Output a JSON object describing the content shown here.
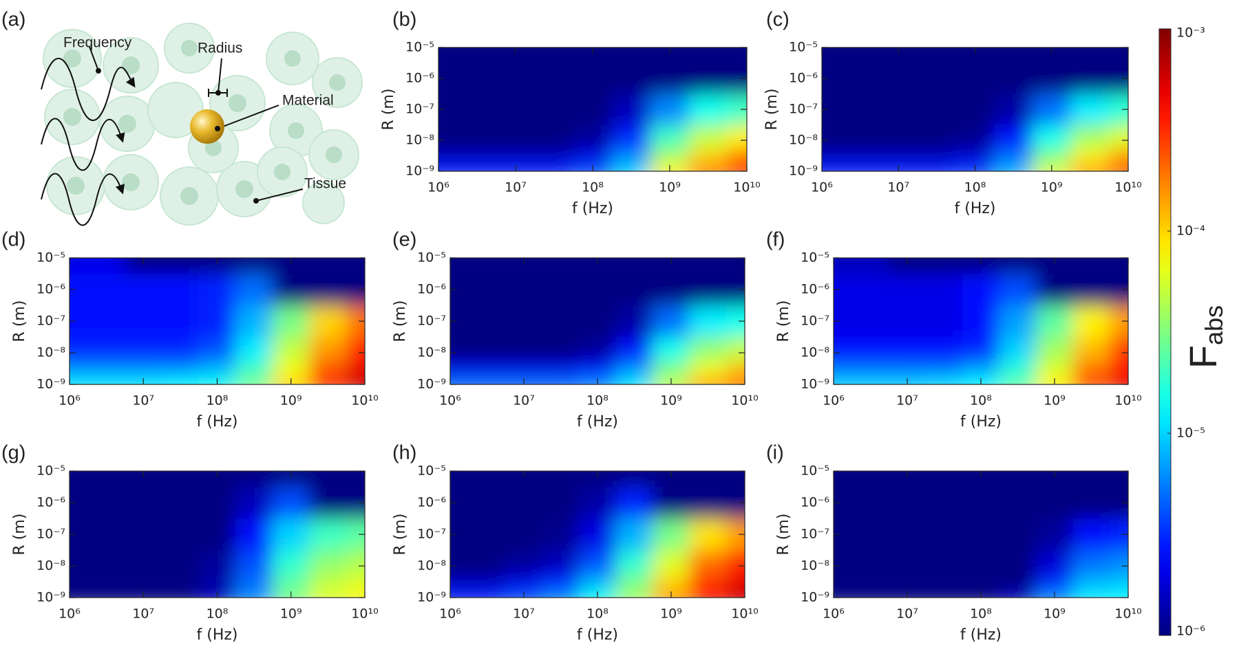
{
  "diagram": {
    "panel_label": "(a)",
    "labels": [
      "Frequency",
      "Radius",
      "Material",
      "Tissue"
    ]
  },
  "chart_data": {
    "type": "heatmap",
    "xlabel": "f (Hz)",
    "ylabel": "R (m)",
    "log_x": true,
    "log_y": true,
    "xlim": [
      1000000.0,
      10000000000.0
    ],
    "ylim": [
      1e-09,
      1e-05
    ],
    "xticks": [
      {
        "value": 1000000.0,
        "label": "10⁶"
      },
      {
        "value": 10000000.0,
        "label": "10⁷"
      },
      {
        "value": 100000000.0,
        "label": "10⁸"
      },
      {
        "value": 1000000000.0,
        "label": "10⁹"
      },
      {
        "value": 10000000000.0,
        "label": "10¹⁰"
      }
    ],
    "yticks": [
      {
        "value": 1e-09,
        "label": "10⁻⁹"
      },
      {
        "value": 1e-08,
        "label": "10⁻⁸"
      },
      {
        "value": 1e-07,
        "label": "10⁻⁷"
      },
      {
        "value": 1e-06,
        "label": "10⁻⁶"
      },
      {
        "value": 1e-05,
        "label": "10⁻⁵"
      }
    ],
    "x": [
      1000000.0,
      3160000.0,
      10000000.0,
      31600000.0,
      100000000.0,
      316000000.0,
      1000000000.0,
      3160000000.0,
      10000000000.0
    ],
    "y": [
      1e-09,
      3.16e-09,
      1e-08,
      1e-07,
      1e-06,
      1e-05
    ],
    "colormap": "jet",
    "colorbar": {
      "label": "F",
      "label_subscript": "abs",
      "lim": [
        1e-06,
        0.001
      ],
      "log": true,
      "ticks": [
        {
          "value": 1e-06,
          "label": "10⁻⁶"
        },
        {
          "value": 1e-05,
          "label": "10⁻⁵"
        },
        {
          "value": 0.0001,
          "label": "10⁻⁴"
        },
        {
          "value": 0.001,
          "label": "10⁻³"
        }
      ]
    },
    "panels": [
      {
        "label": "(b)",
        "z": [
          [
            3e-06,
            3e-06,
            3e-06,
            3e-06,
            4e-06,
            1e-05,
            8e-05,
            0.0002,
            0.0003
          ],
          [
            1.5e-06,
            1.5e-06,
            1.5e-06,
            1.5e-06,
            2e-06,
            6e-06,
            4e-05,
            0.0001,
            0.0002
          ],
          [
            1e-06,
            1e-06,
            1e-06,
            1e-06,
            1.2e-06,
            3e-06,
            2e-05,
            5e-05,
            8e-05
          ],
          [
            1e-06,
            1e-06,
            1e-06,
            1e-06,
            1e-06,
            1.5e-06,
            6e-06,
            1.5e-05,
            2e-05
          ],
          [
            1e-06,
            1e-06,
            1e-06,
            1e-06,
            1e-06,
            1e-06,
            1e-06,
            1e-06,
            1e-06
          ],
          [
            1e-06,
            1e-06,
            1e-06,
            1e-06,
            1e-06,
            1e-06,
            1e-06,
            1e-06,
            1e-06
          ]
        ]
      },
      {
        "label": "(c)",
        "z": [
          [
            3e-06,
            3e-06,
            3e-06,
            3e-06,
            3.5e-06,
            8e-06,
            6e-05,
            0.00015,
            0.00025
          ],
          [
            1.5e-06,
            1.5e-06,
            1.5e-06,
            1.5e-06,
            1.8e-06,
            5e-06,
            3e-05,
            8e-05,
            0.00015
          ],
          [
            1e-06,
            1e-06,
            1e-06,
            1e-06,
            1.1e-06,
            2.5e-06,
            1.5e-05,
            4e-05,
            6e-05
          ],
          [
            1e-06,
            1e-06,
            1e-06,
            1e-06,
            1e-06,
            1.3e-06,
            5e-06,
            1.2e-05,
            1.8e-05
          ],
          [
            1e-06,
            1e-06,
            1e-06,
            1e-06,
            1e-06,
            1e-06,
            1e-06,
            1e-06,
            1e-06
          ],
          [
            1e-06,
            1e-06,
            1e-06,
            1e-06,
            1e-06,
            1e-06,
            1e-06,
            1e-06,
            1e-06
          ]
        ]
      },
      {
        "label": "(d)",
        "z": [
          [
            1.2e-05,
            1.2e-05,
            1.2e-05,
            1.3e-05,
            1.5e-05,
            3e-05,
            0.0001,
            0.0003,
            0.0006
          ],
          [
            6e-06,
            6e-06,
            6e-06,
            6e-06,
            8e-06,
            2e-05,
            7e-05,
            0.00025,
            0.0005
          ],
          [
            3e-06,
            3e-06,
            3e-06,
            3e-06,
            4e-06,
            1.2e-05,
            5e-05,
            0.00015,
            0.00035
          ],
          [
            2.5e-06,
            2.5e-06,
            2.5e-06,
            2.5e-06,
            3e-06,
            8e-06,
            3e-05,
            0.0001,
            0.0002
          ],
          [
            2.5e-06,
            2.5e-06,
            2.5e-06,
            2.5e-06,
            3e-06,
            5e-06,
            1e-06,
            1e-06,
            1e-06
          ],
          [
            2e-06,
            2e-06,
            1e-06,
            1e-06,
            1e-06,
            1e-06,
            1e-06,
            1e-06,
            1e-06
          ]
        ]
      },
      {
        "label": "(e)",
        "z": [
          [
            5e-06,
            5e-06,
            5e-06,
            5e-06,
            6e-06,
            1.2e-05,
            5e-05,
            0.00015,
            0.0002
          ],
          [
            2e-06,
            2e-06,
            2e-06,
            2e-06,
            2.5e-06,
            6e-06,
            3e-05,
            7e-05,
            0.00012
          ],
          [
            1e-06,
            1e-06,
            1e-06,
            1e-06,
            1.2e-06,
            2.5e-06,
            1.5e-05,
            3.5e-05,
            5e-05
          ],
          [
            1e-06,
            1e-06,
            1e-06,
            1e-06,
            1e-06,
            1.3e-06,
            5e-06,
            1.2e-05,
            1.5e-05
          ],
          [
            1e-06,
            1e-06,
            1e-06,
            1e-06,
            1e-06,
            1e-06,
            1e-06,
            1e-06,
            1e-06
          ],
          [
            1e-06,
            1e-06,
            1e-06,
            1e-06,
            1e-06,
            1e-06,
            1e-06,
            1e-06,
            1e-06
          ]
        ]
      },
      {
        "label": "(f)",
        "z": [
          [
            1e-05,
            1e-05,
            1e-05,
            1.1e-05,
            1.3e-05,
            2.5e-05,
            8e-05,
            0.00025,
            0.0005
          ],
          [
            5e-06,
            5e-06,
            5e-06,
            5e-06,
            7e-06,
            1.7e-05,
            6e-05,
            0.0002,
            0.0004
          ],
          [
            2.5e-06,
            2.5e-06,
            2.5e-06,
            2.5e-06,
            3e-06,
            1e-05,
            4e-05,
            0.00012,
            0.0003
          ],
          [
            2e-06,
            2e-06,
            2e-06,
            2e-06,
            2.5e-06,
            7e-06,
            2.5e-05,
            8e-05,
            0.00015
          ],
          [
            2e-06,
            2e-06,
            2e-06,
            2e-06,
            2.5e-06,
            4e-06,
            1e-06,
            1e-06,
            1e-06
          ],
          [
            1.5e-06,
            1.5e-06,
            1e-06,
            1e-06,
            1e-06,
            1e-06,
            1e-06,
            1e-06,
            1e-06
          ]
        ]
      },
      {
        "label": "(g)",
        "z": [
          [
            1e-06,
            1e-06,
            1e-06,
            1e-06,
            1.5e-06,
            6e-06,
            3e-05,
            6e-05,
            8e-05
          ],
          [
            1e-06,
            1e-06,
            1e-06,
            1e-06,
            1.3e-06,
            5e-06,
            2.5e-05,
            5e-05,
            6e-05
          ],
          [
            1e-06,
            1e-06,
            1e-06,
            1e-06,
            1.2e-06,
            4e-06,
            1.8e-05,
            3.5e-05,
            4.5e-05
          ],
          [
            1e-06,
            1e-06,
            1e-06,
            1e-06,
            1e-06,
            2.5e-06,
            1e-05,
            2e-05,
            2.5e-05
          ],
          [
            1e-06,
            1e-06,
            1e-06,
            1e-06,
            1e-06,
            1.5e-06,
            4e-06,
            1e-06,
            1e-06
          ],
          [
            1e-06,
            1e-06,
            1e-06,
            1e-06,
            1e-06,
            1e-06,
            1e-06,
            1e-06,
            1e-06
          ]
        ]
      },
      {
        "label": "(h)",
        "z": [
          [
            3e-06,
            3e-06,
            4e-06,
            6e-06,
            1.5e-05,
            4e-05,
            0.00015,
            0.0004,
            0.0006
          ],
          [
            1.5e-06,
            1.5e-06,
            2e-06,
            3e-06,
            8e-06,
            3e-05,
            0.0001,
            0.0003,
            0.0005
          ],
          [
            1e-06,
            1e-06,
            1.2e-06,
            1.5e-06,
            4e-06,
            1.8e-05,
            6e-05,
            0.0002,
            0.00035
          ],
          [
            1e-06,
            1e-06,
            1e-06,
            1.1e-06,
            2e-06,
            8e-06,
            3e-05,
            9e-05,
            0.00015
          ],
          [
            1e-06,
            1e-06,
            1e-06,
            1e-06,
            1.3e-06,
            3e-06,
            1e-06,
            1e-06,
            1e-06
          ],
          [
            1e-06,
            1e-06,
            1e-06,
            1e-06,
            1e-06,
            1e-06,
            1e-06,
            1e-06,
            1e-06
          ]
        ]
      },
      {
        "label": "(i)",
        "z": [
          [
            1e-06,
            1e-06,
            1e-06,
            1e-06,
            1e-06,
            1.5e-06,
            6e-06,
            1.2e-05,
            1.3e-05
          ],
          [
            1e-06,
            1e-06,
            1e-06,
            1e-06,
            1e-06,
            1e-06,
            3e-06,
            8e-06,
            9e-06
          ],
          [
            1e-06,
            1e-06,
            1e-06,
            1e-06,
            1e-06,
            1e-06,
            1.8e-06,
            5e-06,
            6e-06
          ],
          [
            1e-06,
            1e-06,
            1e-06,
            1e-06,
            1e-06,
            1e-06,
            1.2e-06,
            2.5e-06,
            3e-06
          ],
          [
            1e-06,
            1e-06,
            1e-06,
            1e-06,
            1e-06,
            1e-06,
            1e-06,
            1e-06,
            1e-06
          ],
          [
            1e-06,
            1e-06,
            1e-06,
            1e-06,
            1e-06,
            1e-06,
            1e-06,
            1e-06,
            1e-06
          ]
        ]
      }
    ]
  }
}
